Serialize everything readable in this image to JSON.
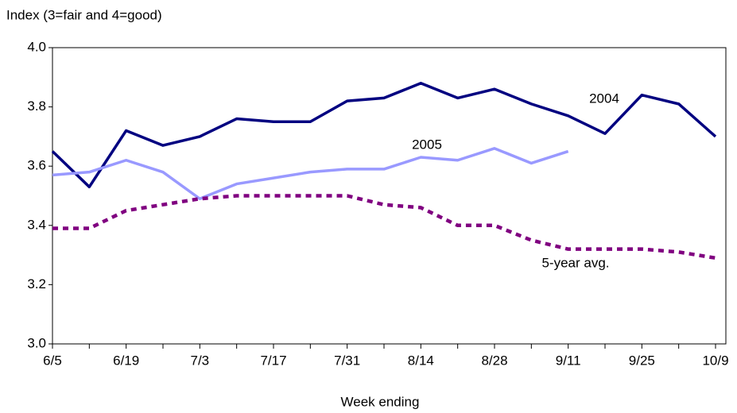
{
  "chart_data": {
    "type": "line",
    "y_label": "Index (3=fair and 4=good)",
    "x_label": "Week ending",
    "categories": [
      "6/5",
      null,
      "6/19",
      null,
      "7/3",
      null,
      "7/17",
      null,
      "7/31",
      null,
      "8/14",
      null,
      "8/28",
      null,
      "9/11",
      null,
      "9/25",
      null,
      "10/9"
    ],
    "series": [
      {
        "name": "2004",
        "color": "#000080",
        "dashed": false,
        "values": [
          3.65,
          3.53,
          3.72,
          3.67,
          3.7,
          3.76,
          3.75,
          3.75,
          3.82,
          3.83,
          3.88,
          3.83,
          3.86,
          3.81,
          3.77,
          3.71,
          3.84,
          3.81,
          3.7
        ]
      },
      {
        "name": "2005",
        "color": "#9999ff",
        "dashed": false,
        "values": [
          3.57,
          3.58,
          3.62,
          3.58,
          3.49,
          3.54,
          3.56,
          3.58,
          3.59,
          3.59,
          3.63,
          3.62,
          3.66,
          3.61,
          3.65,
          null,
          null,
          null,
          null
        ]
      },
      {
        "name": "5-year avg.",
        "color": "#800080",
        "dashed": true,
        "values": [
          3.39,
          3.39,
          3.45,
          3.47,
          3.49,
          3.5,
          3.5,
          3.5,
          3.5,
          3.47,
          3.46,
          3.4,
          3.4,
          3.35,
          3.32,
          3.32,
          3.32,
          3.31,
          3.29
        ]
      }
    ],
    "ylim": [
      3.0,
      4.0
    ],
    "yticks": [
      {
        "value": 3.0,
        "label": "3.0"
      },
      3.2,
      3.4,
      3.6,
      3.8,
      {
        "value": 4.0,
        "label": "4.0"
      }
    ],
    "grid": false
  }
}
